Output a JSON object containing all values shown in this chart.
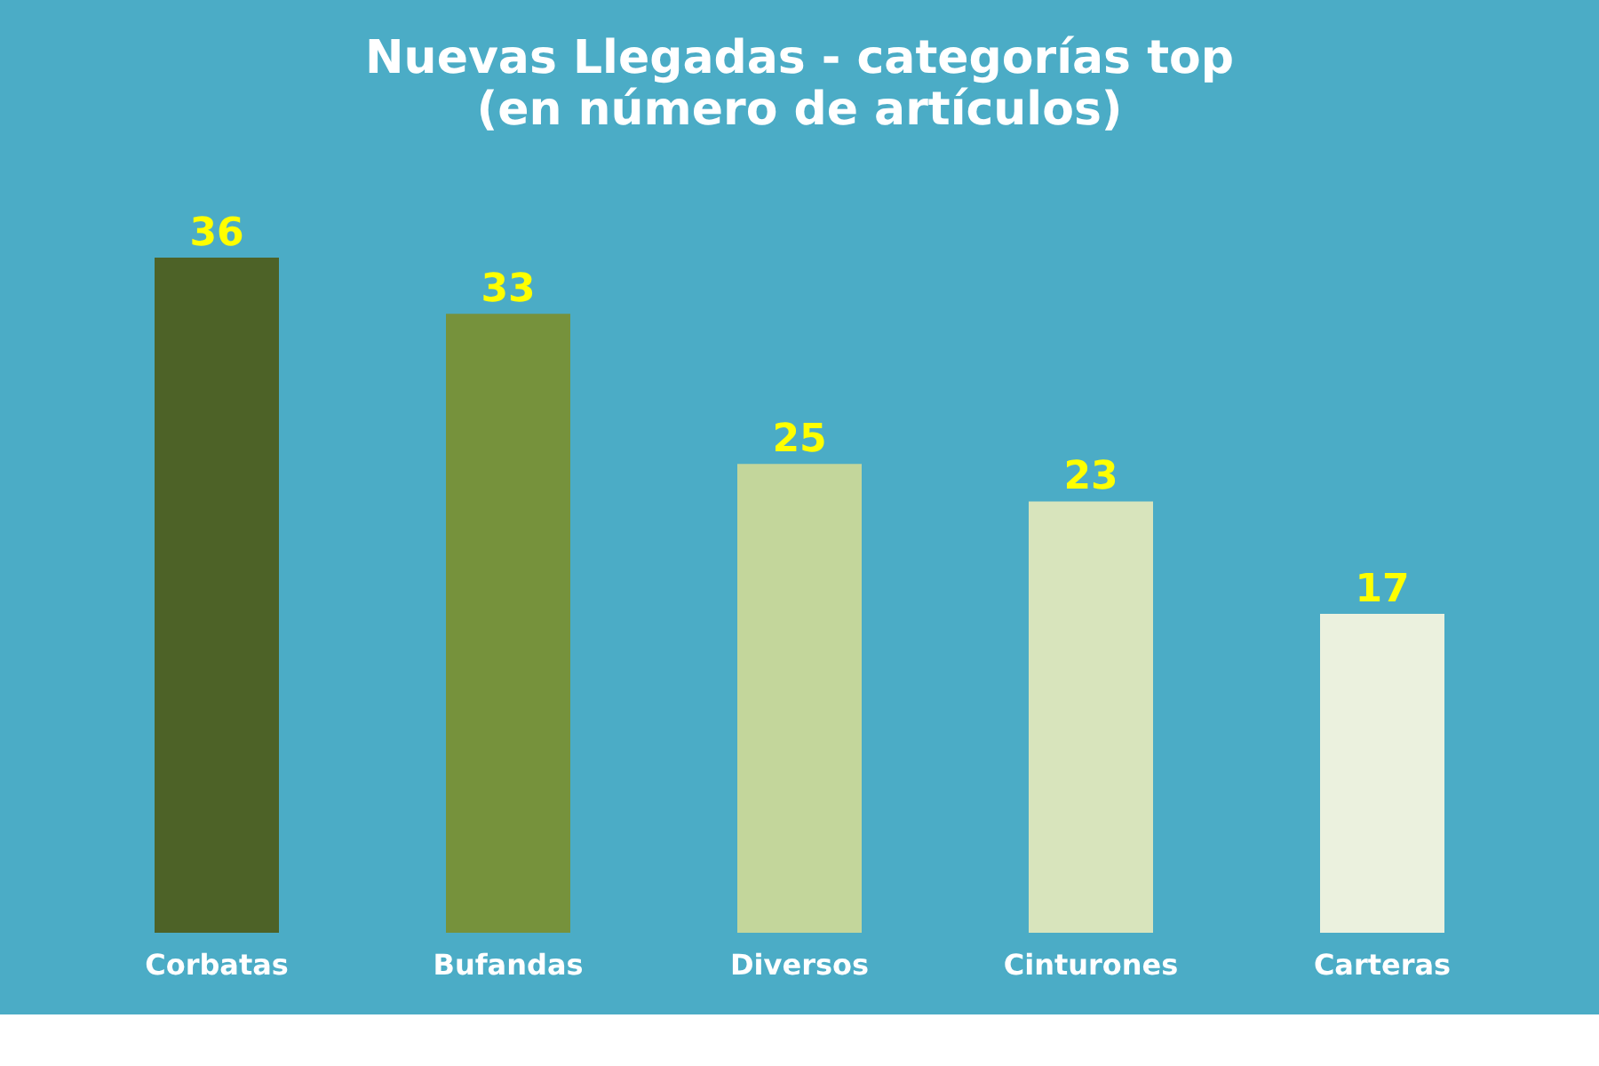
{
  "chart_data": {
    "type": "bar",
    "title": "Nuevas Llegadas - categorías top",
    "subtitle": "(en número de artículos)",
    "categories": [
      "Corbatas",
      "Bufandas",
      "Diversos",
      "Cinturones",
      "Carteras"
    ],
    "values": [
      36,
      33,
      25,
      23,
      17
    ],
    "colors": [
      "#4d6227",
      "#76923c",
      "#c3d69b",
      "#d8e4bc",
      "#ebf1de"
    ],
    "data_labels": true,
    "tick_labels": "x"
  }
}
